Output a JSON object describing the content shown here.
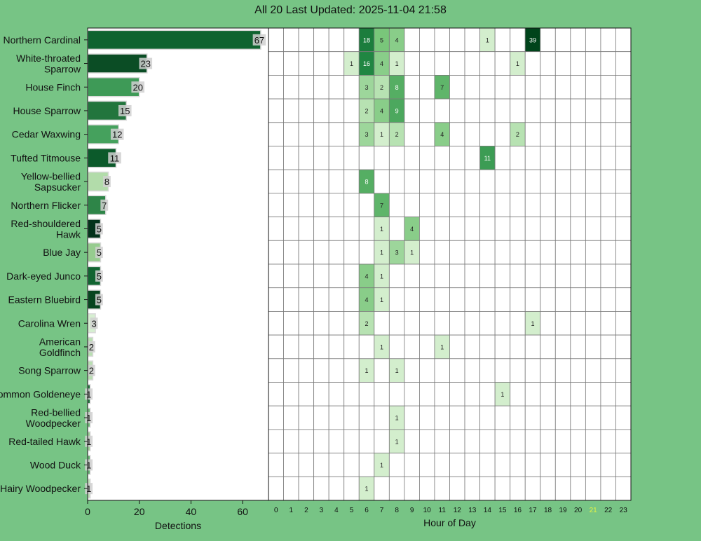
{
  "title": "All 20 Last Updated: 2025-11-04 21:58",
  "colors": {
    "background": "#77c485",
    "current_hour": "#e6f542"
  },
  "chart_data": [
    {
      "type": "bar",
      "orientation": "horizontal",
      "xlabel": "Detections",
      "xlim": [
        0,
        70
      ],
      "xticks": [
        0,
        20,
        40,
        60
      ],
      "categories": [
        "Northern Cardinal",
        "White-throated Sparrow",
        "House Finch",
        "House Sparrow",
        "Cedar Waxwing",
        "Tufted Titmouse",
        "Yellow-bellied Sapsucker",
        "Northern Flicker",
        "Red-shouldered Hawk",
        "Blue Jay",
        "Dark-eyed Junco",
        "Eastern Bluebird",
        "Carolina Wren",
        "American Goldfinch",
        "Song Sparrow",
        "Common Goldeneye",
        "Red-bellied Woodpecker",
        "Red-tailed Hawk",
        "Wood Duck",
        "Hairy Woodpecker"
      ],
      "display_labels": [
        "Northern Cardinal",
        "White-throated\nSparrow",
        "House Finch",
        "House Sparrow",
        "Cedar Waxwing",
        "Tufted Titmouse",
        "Yellow-bellied\nSapsucker",
        "Northern Flicker",
        "Red-shouldered\nHawk",
        "Blue Jay",
        "Dark-eyed Junco",
        "Eastern Bluebird",
        "Carolina Wren",
        "American\nGoldfinch",
        "Song Sparrow",
        "ommon Goldeneye",
        "Red-bellied\nWoodpecker",
        "Red-tailed Hawk",
        "Wood Duck",
        "Hairy Woodpecker"
      ],
      "values": [
        67,
        23,
        20,
        15,
        12,
        11,
        8,
        7,
        5,
        5,
        5,
        5,
        3,
        2,
        2,
        1,
        1,
        1,
        1,
        1
      ],
      "bar_colors": [
        "#0f6330",
        "#0b4d25",
        "#3e9a57",
        "#22753d",
        "#45a15d",
        "#0c5a2b",
        "#b2dcaa",
        "#2e8548",
        "#03331a",
        "#96cc8f",
        "#116431",
        "#07451f",
        "#d6efd1",
        "#b9dfb2",
        "#b9dfb2",
        "#1d6e38",
        "#6cb875",
        "#9ccf95",
        "#5eae6c",
        "#bfe2b8"
      ]
    },
    {
      "type": "heatmap",
      "xlabel": "Hour of Day",
      "x": [
        "0",
        "1",
        "2",
        "3",
        "4",
        "5",
        "6",
        "7",
        "8",
        "9",
        "10",
        "11",
        "12",
        "13",
        "14",
        "15",
        "16",
        "17",
        "18",
        "19",
        "20",
        "21",
        "22",
        "23"
      ],
      "highlighted_hour": "21",
      "rows": [
        {
          "species": "Northern Cardinal",
          "counts": {
            "6": 18,
            "7": 5,
            "8": 4,
            "14": 1,
            "17": 39
          }
        },
        {
          "species": "White-throated Sparrow",
          "counts": {
            "5": 1,
            "6": 16,
            "7": 4,
            "8": 1,
            "16": 1
          }
        },
        {
          "species": "House Finch",
          "counts": {
            "6": 3,
            "7": 2,
            "8": 8,
            "11": 7
          }
        },
        {
          "species": "House Sparrow",
          "counts": {
            "6": 2,
            "7": 4,
            "8": 9
          }
        },
        {
          "species": "Cedar Waxwing",
          "counts": {
            "6": 3,
            "7": 1,
            "8": 2,
            "11": 4,
            "16": 2
          }
        },
        {
          "species": "Tufted Titmouse",
          "counts": {
            "14": 11
          }
        },
        {
          "species": "Yellow-bellied Sapsucker",
          "counts": {
            "6": 8
          }
        },
        {
          "species": "Northern Flicker",
          "counts": {
            "7": 7
          }
        },
        {
          "species": "Red-shouldered Hawk",
          "counts": {
            "7": 1,
            "9": 4
          }
        },
        {
          "species": "Blue Jay",
          "counts": {
            "7": 1,
            "8": 3,
            "9": 1
          }
        },
        {
          "species": "Dark-eyed Junco",
          "counts": {
            "6": 4,
            "7": 1
          }
        },
        {
          "species": "Eastern Bluebird",
          "counts": {
            "6": 4,
            "7": 1
          }
        },
        {
          "species": "Carolina Wren",
          "counts": {
            "6": 2,
            "17": 1
          }
        },
        {
          "species": "American Goldfinch",
          "counts": {
            "7": 1,
            "11": 1
          }
        },
        {
          "species": "Song Sparrow",
          "counts": {
            "6": 1,
            "8": 1
          }
        },
        {
          "species": "Common Goldeneye",
          "counts": {
            "15": 1
          }
        },
        {
          "species": "Red-bellied Woodpecker",
          "counts": {
            "8": 1
          }
        },
        {
          "species": "Red-tailed Hawk",
          "counts": {
            "8": 1
          }
        },
        {
          "species": "Wood Duck",
          "counts": {
            "7": 1
          }
        },
        {
          "species": "Hairy Woodpecker",
          "counts": {
            "6": 1
          }
        }
      ]
    }
  ]
}
